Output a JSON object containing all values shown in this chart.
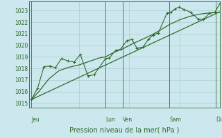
{
  "bg_color": "#cce8ee",
  "grid_color": "#aacccc",
  "line_color": "#2d6a2d",
  "ylabel_ticks": [
    1015,
    1016,
    1017,
    1018,
    1019,
    1020,
    1021,
    1022,
    1023
  ],
  "ylim": [
    1014.6,
    1023.8
  ],
  "xlim": [
    0.0,
    7.6
  ],
  "xlabel": "Pression niveau de la mer( hPa )",
  "day_labels": [
    "Jeu",
    "Lun",
    "Ven",
    "Sam",
    "Dim"
  ],
  "day_positions": [
    0.1,
    3.05,
    3.75,
    5.6,
    7.45
  ],
  "vline_positions": [
    0.1,
    3.05,
    3.75,
    5.6,
    7.45
  ],
  "trend_line": [
    [
      0.1,
      1015.3
    ],
    [
      7.6,
      1022.9
    ]
  ],
  "smooth_line": [
    [
      0.1,
      1015.3
    ],
    [
      0.4,
      1016.0
    ],
    [
      0.8,
      1017.1
    ],
    [
      1.2,
      1017.8
    ],
    [
      1.6,
      1018.1
    ],
    [
      2.0,
      1018.3
    ],
    [
      2.4,
      1018.6
    ],
    [
      2.8,
      1018.9
    ],
    [
      3.05,
      1019.0
    ],
    [
      3.4,
      1019.4
    ],
    [
      3.75,
      1019.7
    ],
    [
      4.1,
      1020.1
    ],
    [
      4.5,
      1020.5
    ],
    [
      4.9,
      1020.9
    ],
    [
      5.3,
      1021.4
    ],
    [
      5.6,
      1021.8
    ],
    [
      6.0,
      1022.2
    ],
    [
      6.4,
      1022.5
    ],
    [
      6.8,
      1022.7
    ],
    [
      7.2,
      1022.8
    ],
    [
      7.6,
      1022.85
    ]
  ],
  "series1": [
    [
      0.1,
      1015.3
    ],
    [
      0.35,
      1016.3
    ],
    [
      0.6,
      1018.15
    ],
    [
      0.85,
      1018.2
    ],
    [
      1.05,
      1018.05
    ],
    [
      1.3,
      1018.85
    ],
    [
      1.55,
      1018.65
    ],
    [
      1.8,
      1018.55
    ],
    [
      2.05,
      1019.2
    ],
    [
      2.35,
      1017.35
    ],
    [
      2.6,
      1017.45
    ],
    [
      3.05,
      1018.85
    ],
    [
      3.2,
      1018.9
    ],
    [
      3.45,
      1019.55
    ],
    [
      3.65,
      1019.65
    ],
    [
      3.9,
      1020.4
    ],
    [
      4.1,
      1020.5
    ],
    [
      4.3,
      1019.75
    ],
    [
      4.55,
      1019.85
    ],
    [
      4.75,
      1020.5
    ],
    [
      4.95,
      1020.9
    ],
    [
      5.15,
      1021.05
    ],
    [
      5.5,
      1022.8
    ],
    [
      5.65,
      1022.85
    ],
    [
      5.82,
      1023.15
    ],
    [
      5.97,
      1023.3
    ],
    [
      6.18,
      1023.1
    ],
    [
      6.45,
      1022.85
    ],
    [
      6.75,
      1022.25
    ],
    [
      6.95,
      1022.25
    ],
    [
      7.2,
      1022.8
    ],
    [
      7.4,
      1022.85
    ],
    [
      7.6,
      1023.6
    ]
  ]
}
